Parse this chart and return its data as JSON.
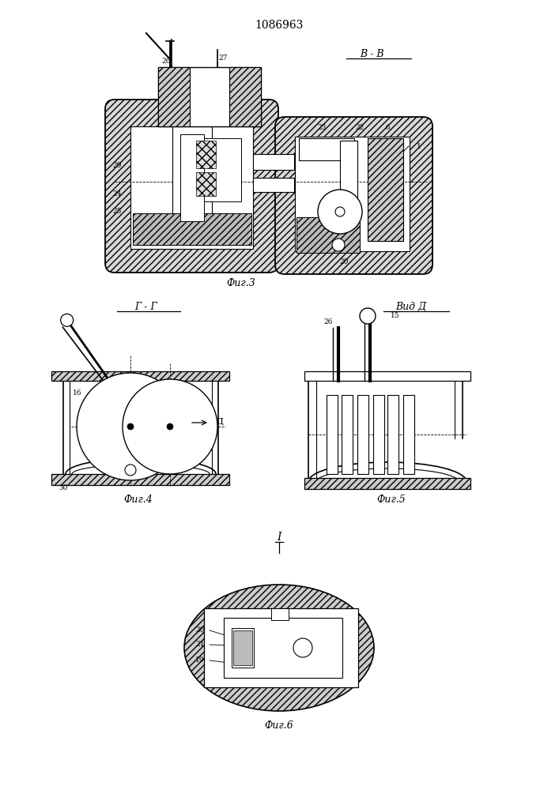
{
  "patent_number": "1086963",
  "fig3_label": "Фиг.3",
  "fig4_label": "Фиг.4",
  "fig5_label": "Фиг.5",
  "fig6_label": "Фиг.6",
  "view_bb": "В - В",
  "view_gg": "Г - Г",
  "view_d": "Вид Д",
  "view_I": "I"
}
